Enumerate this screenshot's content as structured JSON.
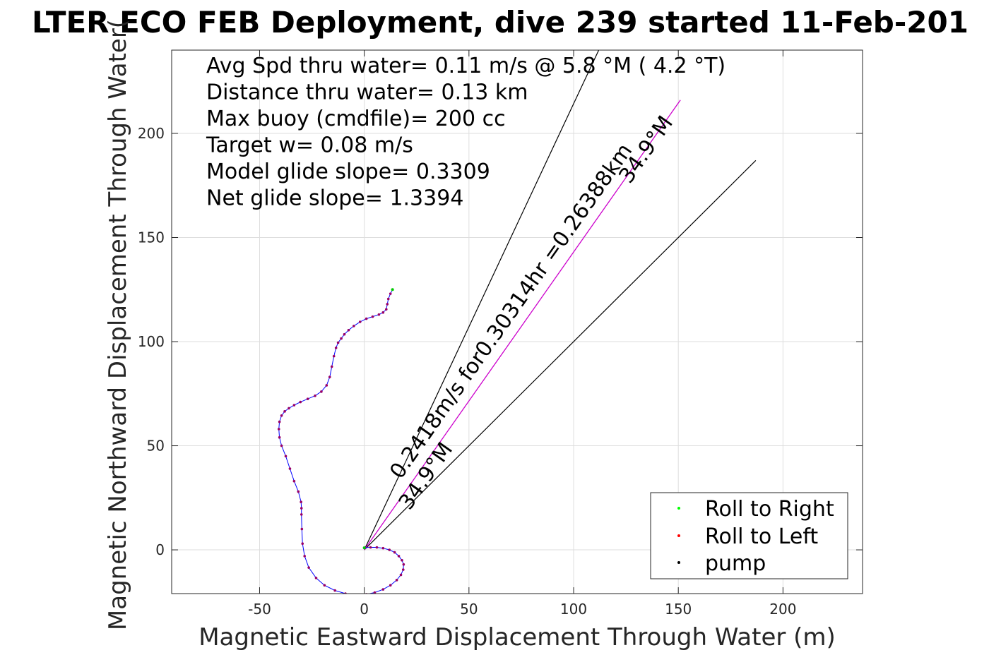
{
  "chart_data": {
    "type": "scatter",
    "title": "LTER ECO FEB Deployment, dive 239 started 11-Feb-201",
    "xlabel": "Magnetic Eastward Displacement Through Water (m)",
    "ylabel": "Magnetic Northward Displacement Through Water(",
    "xlim": [
      -92,
      238
    ],
    "ylim": [
      -21,
      240
    ],
    "xticks": [
      -50,
      0,
      50,
      100,
      150,
      200
    ],
    "yticks": [
      0,
      50,
      100,
      150,
      200
    ],
    "grid": true,
    "legend_position": "bottom-right",
    "legend": [
      {
        "label": "Roll to Right",
        "color": "#00ff00"
      },
      {
        "label": "Roll to Left",
        "color": "#ff0000"
      },
      {
        "label": "pump",
        "color": "#000000"
      }
    ],
    "annotations": [
      "Avg Spd thru water=  0.11 m/s @   5.8 °M (  4.2 °T)",
      "Distance thru water=  0.13 km",
      "Max buoy (cmdfile)= 200 cc",
      "Target w= 0.08 m/s",
      "Model glide slope= 0.3309",
      "Net glide slope= 1.3394"
    ],
    "vector_label_main": "0.2418m/s for0.30314hr =0.26388km",
    "vector_label_heading_end": "34.9°M",
    "vector_label_heading_origin": "34.9°M",
    "cone_lines": [
      {
        "x": [
          0,
          112
        ],
        "y": [
          0,
          240
        ]
      },
      {
        "x": [
          0,
          187
        ],
        "y": [
          0,
          187
        ]
      }
    ],
    "vector_line": {
      "x": [
        0,
        151
      ],
      "y": [
        0,
        216
      ],
      "color": "#cc00cc"
    },
    "track": {
      "color": "#0000ff",
      "marker_color": "#990066",
      "x": [
        0,
        3,
        6,
        9,
        12,
        14.5,
        16.5,
        18,
        18.8,
        18.6,
        17.5,
        15.5,
        12.5,
        9,
        5,
        1,
        -4,
        -9,
        -14,
        -19,
        -23,
        -26.5,
        -28.5,
        -29.5,
        -29.8,
        -30,
        -30,
        -30.2,
        -31.5,
        -33.5,
        -35.5,
        -37.5,
        -39.5,
        -40.5,
        -40.8,
        -40.5,
        -39.5,
        -38,
        -36,
        -33.5,
        -30.5,
        -27,
        -23.5,
        -20.5,
        -18,
        -16.5,
        -15.5,
        -14.5,
        -13.5,
        -12.5,
        -11,
        -9.5,
        -7.5,
        -5,
        -2,
        1,
        4,
        7,
        9,
        10.5,
        11,
        11.5,
        12.5,
        13.5
      ],
      "y": [
        1,
        1.2,
        1.2,
        0.8,
        0,
        -1.2,
        -3,
        -5,
        -7,
        -9.5,
        -12,
        -14.5,
        -17,
        -19,
        -20.5,
        -21.3,
        -21.5,
        -21,
        -19.5,
        -17,
        -13.5,
        -8.5,
        -3,
        3,
        10,
        17,
        20,
        23,
        28,
        33,
        39,
        45,
        50,
        54,
        58,
        61.5,
        64.5,
        66.5,
        68,
        69.5,
        71,
        72.5,
        74,
        76,
        79,
        83,
        88,
        93,
        97,
        99.5,
        101.5,
        103.5,
        105.5,
        107.5,
        109.5,
        111,
        112,
        113,
        114,
        115.5,
        118,
        120.5,
        123,
        125
      ]
    }
  }
}
